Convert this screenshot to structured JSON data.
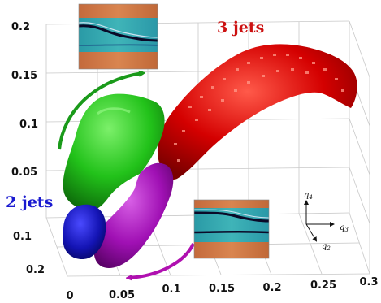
{
  "figure": {
    "z_ticks": [
      "0.2",
      "0.15",
      "0.1",
      "0.05"
    ],
    "y_ticks": [
      "0.1",
      "0.2"
    ],
    "x_ticks": [
      "0",
      "0.05",
      "0.1",
      "0.15",
      "0.2",
      "0.25",
      "0.3"
    ],
    "labels": {
      "three_jets": "3 jets",
      "two_jets": "2 jets"
    },
    "triad": {
      "q4": "q",
      "q4_sub": "4",
      "q3": "q",
      "q3_sub": "3",
      "q2": "q",
      "q2_sub": "2"
    },
    "colors": {
      "red_cluster": "#d40000",
      "green_cluster": "#22c21a",
      "magenta_cluster": "#a010b4",
      "blue_cluster": "#1414b4",
      "green_arrow": "#1a9a1a",
      "magenta_arrow": "#b010b0",
      "three_jets_label": "#cc1111",
      "two_jets_label": "#1a1ad0"
    }
  }
}
